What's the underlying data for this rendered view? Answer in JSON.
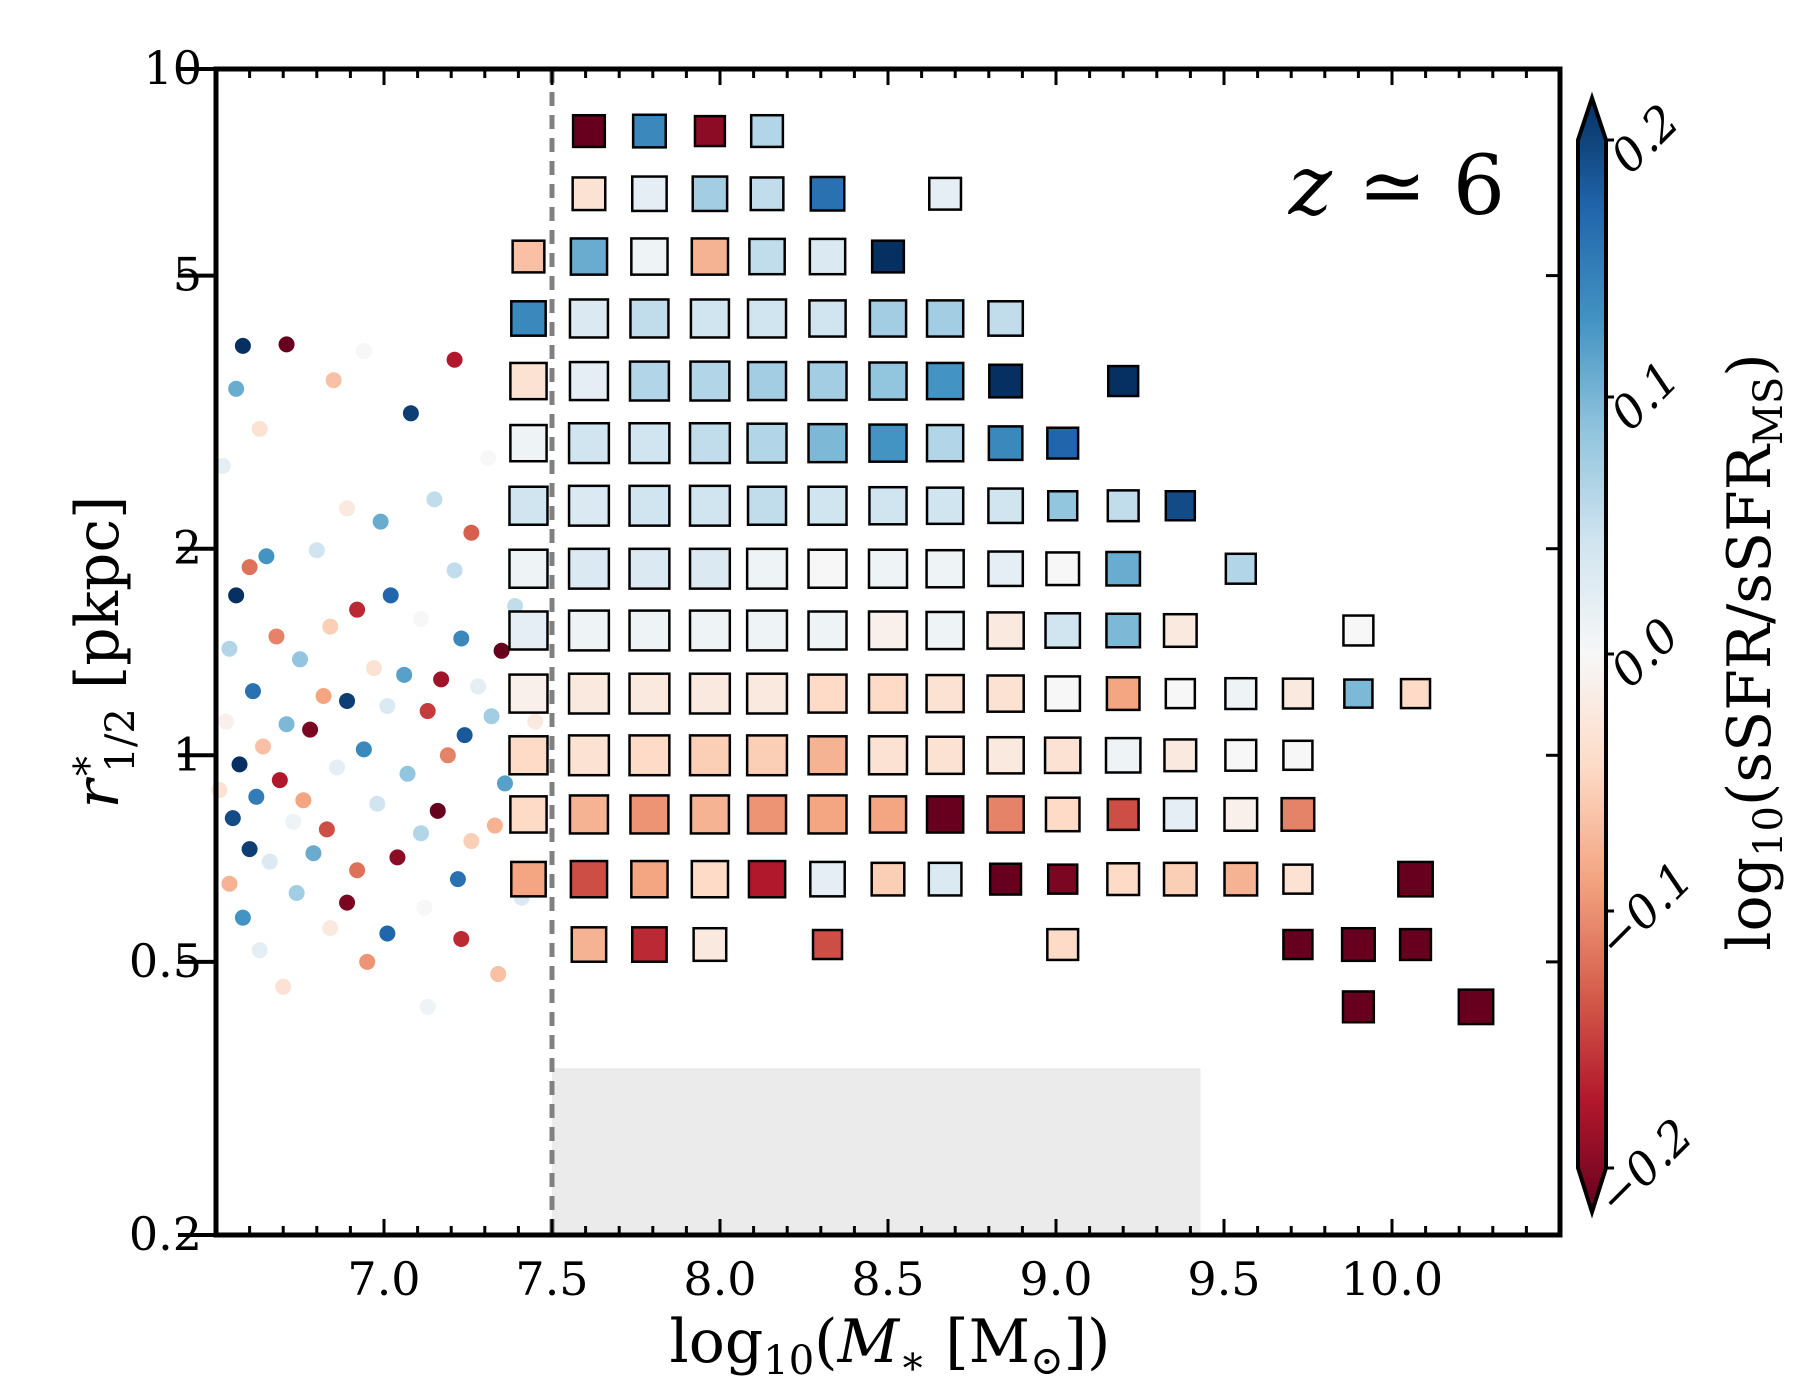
{
  "chart_data": {
    "type": "scatter",
    "title": "",
    "annotation": "z ≃ 6",
    "xlabel": {
      "pre": "log",
      "sub": "10",
      "mid": "(",
      "var": "M",
      "varsub": "∗",
      "rest": " [M",
      "sun": "⊙",
      "post": "])"
    },
    "ylabel": {
      "var": "r",
      "sup": "∗",
      "sub": "1/2",
      "rest": " [pkpc]"
    },
    "xlim": [
      6.5,
      10.5
    ],
    "ylim": [
      0.2,
      10
    ],
    "yscale": "log",
    "xticks": [
      "7.0",
      "7.5",
      "8.0",
      "8.5",
      "9.0",
      "9.5",
      "10.0"
    ],
    "yticks": [
      {
        "value": 0.2,
        "label": "0.2"
      },
      {
        "value": 0.5,
        "label": "0.5"
      },
      {
        "value": 1,
        "label": "1"
      },
      {
        "value": 2,
        "label": "2"
      },
      {
        "value": 5,
        "label": "5"
      },
      {
        "value": 10,
        "label": "10"
      }
    ],
    "mass_cut": 7.5,
    "shaded_region": {
      "x": [
        7.5,
        9.43
      ],
      "y": [
        0.2,
        0.35
      ]
    },
    "colorbar": {
      "label": {
        "pre": "log",
        "sub": "10",
        "mid": "(sSFR/sSFR",
        "msub": "MS",
        "post": ")"
      },
      "range": [
        -0.2,
        0.2
      ],
      "ticks": [
        "−0.2",
        "−0.1",
        "0.0",
        "0.1",
        "0.2"
      ],
      "tick_values": [
        -0.2,
        -0.1,
        0.0,
        0.1,
        0.2
      ],
      "colors": [
        "#67001f",
        "#b2182b",
        "#d6604d",
        "#f4a582",
        "#fddbc7",
        "#f7f7f7",
        "#d1e5f0",
        "#92c5de",
        "#4393c3",
        "#2166ac",
        "#053061"
      ]
    },
    "binned_columns": [
      7.61,
      7.79,
      7.97,
      8.14,
      8.32,
      8.5,
      8.67,
      8.85,
      9.02,
      9.2,
      9.37,
      9.55,
      9.72,
      9.9,
      10.07,
      10.25
    ],
    "binned_rows": [
      0.43,
      0.53,
      0.66,
      0.82,
      1.0,
      1.23,
      1.52,
      1.87,
      2.31,
      2.85,
      3.51,
      4.33,
      5.33,
      6.58,
      8.12
    ],
    "binned_series": [
      {
        "row": 0,
        "cells": [
          [
            13,
            -0.2,
            0.6
          ],
          [
            15,
            -0.2,
            0.8
          ]
        ]
      },
      {
        "row": 1,
        "cells": [
          [
            0,
            -0.07,
            0.8
          ],
          [
            1,
            -0.15,
            0.8
          ],
          [
            2,
            -0.02,
            0.7
          ],
          [
            4,
            -0.13,
            0.5
          ],
          [
            8,
            -0.04,
            0.6
          ],
          [
            12,
            -0.2,
            0.5
          ],
          [
            13,
            -0.2,
            0.7
          ],
          [
            14,
            -0.2,
            0.6
          ]
        ]
      },
      {
        "row": 2,
        "cells": [
          [
            -1,
            -0.08,
            0.8
          ],
          [
            0,
            -0.13,
            0.9
          ],
          [
            1,
            -0.08,
            0.9
          ],
          [
            2,
            -0.04,
            0.9
          ],
          [
            3,
            -0.16,
            0.9
          ],
          [
            4,
            0.02,
            0.8
          ],
          [
            5,
            -0.05,
            0.7
          ],
          [
            6,
            0.03,
            0.7
          ],
          [
            7,
            -0.2,
            0.6
          ],
          [
            8,
            -0.19,
            0.5
          ],
          [
            9,
            -0.04,
            0.65
          ],
          [
            10,
            -0.05,
            0.7
          ],
          [
            11,
            -0.07,
            0.7
          ],
          [
            12,
            -0.03,
            0.5
          ],
          [
            14,
            -0.2,
            0.8
          ]
        ]
      },
      {
        "row": 3,
        "cells": [
          [
            -1,
            -0.04,
            0.9
          ],
          [
            0,
            -0.07,
            1.0
          ],
          [
            1,
            -0.09,
            1.0
          ],
          [
            2,
            -0.07,
            1.0
          ],
          [
            3,
            -0.09,
            1.0
          ],
          [
            4,
            -0.08,
            1.0
          ],
          [
            5,
            -0.08,
            0.9
          ],
          [
            6,
            -0.2,
            0.9
          ],
          [
            7,
            -0.1,
            0.9
          ],
          [
            8,
            -0.04,
            0.75
          ],
          [
            9,
            -0.13,
            0.6
          ],
          [
            10,
            0.02,
            0.7
          ],
          [
            11,
            -0.01,
            0.7
          ],
          [
            12,
            -0.1,
            0.7
          ]
        ]
      },
      {
        "row": 4,
        "cells": [
          [
            -1,
            -0.04,
            1.0
          ],
          [
            0,
            -0.03,
            1.1
          ],
          [
            1,
            -0.04,
            1.1
          ],
          [
            2,
            -0.05,
            1.1
          ],
          [
            3,
            -0.05,
            1.1
          ],
          [
            4,
            -0.07,
            1.0
          ],
          [
            5,
            -0.03,
            1.0
          ],
          [
            6,
            -0.03,
            0.95
          ],
          [
            7,
            -0.02,
            0.9
          ],
          [
            8,
            -0.03,
            0.85
          ],
          [
            9,
            0.01,
            0.8
          ],
          [
            10,
            -0.02,
            0.65
          ],
          [
            11,
            0.0,
            0.6
          ],
          [
            12,
            0.0,
            0.5
          ]
        ]
      },
      {
        "row": 5,
        "cells": [
          [
            -1,
            -0.01,
            1.0
          ],
          [
            0,
            -0.02,
            1.1
          ],
          [
            1,
            -0.02,
            1.1
          ],
          [
            2,
            -0.02,
            1.1
          ],
          [
            3,
            -0.02,
            1.1
          ],
          [
            4,
            -0.04,
            1.0
          ],
          [
            5,
            -0.04,
            1.0
          ],
          [
            6,
            -0.03,
            0.95
          ],
          [
            7,
            -0.03,
            0.9
          ],
          [
            8,
            0.0,
            0.8
          ],
          [
            9,
            -0.08,
            0.7
          ],
          [
            10,
            0.0,
            0.5
          ],
          [
            11,
            0.01,
            0.6
          ],
          [
            12,
            -0.02,
            0.55
          ],
          [
            13,
            0.09,
            0.45
          ],
          [
            14,
            -0.04,
            0.5
          ]
        ]
      },
      {
        "row": 6,
        "cells": [
          [
            -1,
            0.02,
            1.0
          ],
          [
            0,
            0.01,
            1.1
          ],
          [
            1,
            0.01,
            1.1
          ],
          [
            2,
            0.01,
            1.1
          ],
          [
            3,
            0.01,
            1.1
          ],
          [
            4,
            0.01,
            1.0
          ],
          [
            5,
            -0.01,
            1.0
          ],
          [
            6,
            0.01,
            0.95
          ],
          [
            7,
            -0.02,
            0.9
          ],
          [
            8,
            0.04,
            0.8
          ],
          [
            9,
            0.09,
            0.75
          ],
          [
            10,
            -0.02,
            0.7
          ],
          [
            13,
            0.0,
            0.55
          ]
        ]
      },
      {
        "row": 7,
        "cells": [
          [
            -1,
            0.01,
            1.0
          ],
          [
            0,
            0.03,
            1.1
          ],
          [
            1,
            0.03,
            1.1
          ],
          [
            2,
            0.03,
            1.1
          ],
          [
            3,
            0.01,
            1.1
          ],
          [
            4,
            0.0,
            1.0
          ],
          [
            5,
            0.01,
            1.0
          ],
          [
            6,
            0.01,
            0.95
          ],
          [
            7,
            0.02,
            0.8
          ],
          [
            8,
            0.0,
            0.7
          ],
          [
            9,
            0.1,
            0.75
          ],
          [
            11,
            0.06,
            0.55
          ]
        ]
      },
      {
        "row": 8,
        "cells": [
          [
            -1,
            0.04,
            1.0
          ],
          [
            0,
            0.03,
            1.1
          ],
          [
            1,
            0.04,
            1.1
          ],
          [
            2,
            0.04,
            1.1
          ],
          [
            3,
            0.05,
            1.0
          ],
          [
            4,
            0.04,
            1.0
          ],
          [
            5,
            0.04,
            0.95
          ],
          [
            6,
            0.04,
            0.9
          ],
          [
            7,
            0.04,
            0.8
          ],
          [
            8,
            0.08,
            0.5
          ],
          [
            9,
            0.05,
            0.6
          ],
          [
            10,
            0.18,
            0.5
          ]
        ]
      },
      {
        "row": 9,
        "cells": [
          [
            -1,
            0.01,
            0.9
          ],
          [
            0,
            0.04,
            1.1
          ],
          [
            1,
            0.04,
            1.1
          ],
          [
            2,
            0.05,
            1.1
          ],
          [
            3,
            0.06,
            1.05
          ],
          [
            4,
            0.09,
            1.0
          ],
          [
            5,
            0.12,
            0.95
          ],
          [
            6,
            0.06,
            0.9
          ],
          [
            7,
            0.13,
            0.75
          ],
          [
            8,
            0.16,
            0.6
          ]
        ]
      },
      {
        "row": 10,
        "cells": [
          [
            -1,
            -0.03,
            0.9
          ],
          [
            0,
            0.02,
            1.0
          ],
          [
            1,
            0.06,
            1.05
          ],
          [
            2,
            0.06,
            1.05
          ],
          [
            3,
            0.07,
            1.0
          ],
          [
            4,
            0.07,
            1.0
          ],
          [
            5,
            0.08,
            0.95
          ],
          [
            6,
            0.12,
            0.9
          ],
          [
            7,
            0.2,
            0.7
          ],
          [
            9,
            0.2,
            0.55
          ]
        ]
      },
      {
        "row": 11,
        "cells": [
          [
            -1,
            0.13,
            0.8
          ],
          [
            0,
            0.03,
            1.0
          ],
          [
            1,
            0.05,
            1.0
          ],
          [
            2,
            0.04,
            1.0
          ],
          [
            3,
            0.04,
            1.0
          ],
          [
            4,
            0.04,
            0.9
          ],
          [
            5,
            0.07,
            0.9
          ],
          [
            6,
            0.07,
            0.9
          ],
          [
            7,
            0.05,
            0.8
          ]
        ]
      },
      {
        "row": 12,
        "cells": [
          [
            -1,
            -0.06,
            0.65
          ],
          [
            0,
            0.1,
            0.9
          ],
          [
            1,
            0.01,
            0.9
          ],
          [
            2,
            -0.07,
            0.9
          ],
          [
            3,
            0.05,
            0.85
          ],
          [
            4,
            0.03,
            0.85
          ],
          [
            5,
            0.2,
            0.65
          ]
        ]
      },
      {
        "row": 13,
        "cells": [
          [
            0,
            -0.03,
            0.7
          ],
          [
            1,
            0.02,
            0.8
          ],
          [
            2,
            0.07,
            0.8
          ],
          [
            3,
            0.05,
            0.7
          ],
          [
            4,
            0.15,
            0.75
          ],
          [
            6,
            0.02,
            0.65
          ]
        ]
      },
      {
        "row": 14,
        "cells": [
          [
            0,
            -0.2,
            0.65
          ],
          [
            1,
            0.13,
            0.7
          ],
          [
            2,
            -0.18,
            0.55
          ],
          [
            3,
            0.06,
            0.65
          ]
        ]
      }
    ],
    "scatter_points": [
      [
        6.58,
        3.95,
        0.2
      ],
      [
        6.71,
        3.97,
        -0.2
      ],
      [
        6.94,
        3.88,
        0.0
      ],
      [
        7.21,
        3.77,
        -0.16
      ],
      [
        7.08,
        3.15,
        0.19
      ],
      [
        6.56,
        3.42,
        0.1
      ],
      [
        6.63,
        2.99,
        -0.03
      ],
      [
        6.85,
        3.52,
        -0.06
      ],
      [
        7.31,
        2.71,
        0.0
      ],
      [
        6.52,
        2.64,
        0.02
      ],
      [
        7.15,
        2.36,
        0.05
      ],
      [
        6.99,
        2.19,
        0.1
      ],
      [
        6.89,
        2.29,
        -0.02
      ],
      [
        7.26,
        2.11,
        -0.12
      ],
      [
        6.65,
        1.95,
        0.12
      ],
      [
        6.8,
        1.99,
        0.04
      ],
      [
        6.6,
        1.88,
        -0.11
      ],
      [
        7.02,
        1.71,
        0.16
      ],
      [
        7.21,
        1.86,
        0.05
      ],
      [
        6.56,
        1.71,
        0.2
      ],
      [
        6.92,
        1.63,
        -0.15
      ],
      [
        7.11,
        1.58,
        0.0
      ],
      [
        6.84,
        1.54,
        -0.05
      ],
      [
        6.68,
        1.49,
        -0.1
      ],
      [
        7.23,
        1.48,
        0.13
      ],
      [
        7.35,
        1.42,
        -0.2
      ],
      [
        6.54,
        1.43,
        0.06
      ],
      [
        6.75,
        1.38,
        0.08
      ],
      [
        6.97,
        1.34,
        -0.03
      ],
      [
        7.06,
        1.31,
        0.11
      ],
      [
        7.17,
        1.29,
        -0.17
      ],
      [
        7.28,
        1.26,
        0.02
      ],
      [
        6.61,
        1.24,
        0.15
      ],
      [
        6.82,
        1.22,
        -0.08
      ],
      [
        6.89,
        1.2,
        0.19
      ],
      [
        7.01,
        1.18,
        0.03
      ],
      [
        7.13,
        1.16,
        -0.14
      ],
      [
        7.32,
        1.14,
        0.07
      ],
      [
        6.53,
        1.12,
        -0.01
      ],
      [
        6.71,
        1.11,
        0.09
      ],
      [
        6.78,
        1.09,
        -0.19
      ],
      [
        7.24,
        1.07,
        0.17
      ],
      [
        7.4,
        1.05,
        0.0
      ],
      [
        6.64,
        1.03,
        -0.06
      ],
      [
        6.94,
        1.02,
        0.13
      ],
      [
        7.19,
        1.0,
        -0.1
      ],
      [
        6.57,
        0.97,
        0.2
      ],
      [
        6.86,
        0.96,
        0.02
      ],
      [
        7.07,
        0.94,
        0.08
      ],
      [
        6.69,
        0.92,
        -0.16
      ],
      [
        7.36,
        0.91,
        0.11
      ],
      [
        6.51,
        0.89,
        -0.03
      ],
      [
        6.62,
        0.87,
        0.14
      ],
      [
        6.76,
        0.86,
        -0.08
      ],
      [
        6.98,
        0.85,
        0.04
      ],
      [
        7.16,
        0.83,
        -0.2
      ],
      [
        6.55,
        0.81,
        0.18
      ],
      [
        6.73,
        0.8,
        0.01
      ],
      [
        6.83,
        0.78,
        -0.13
      ],
      [
        7.11,
        0.77,
        0.06
      ],
      [
        7.26,
        0.75,
        -0.05
      ],
      [
        6.6,
        0.73,
        0.19
      ],
      [
        6.79,
        0.72,
        0.1
      ],
      [
        7.04,
        0.71,
        -0.18
      ],
      [
        6.66,
        0.7,
        0.03
      ],
      [
        6.92,
        0.68,
        -0.11
      ],
      [
        7.22,
        0.66,
        0.15
      ],
      [
        6.54,
        0.65,
        -0.07
      ],
      [
        6.74,
        0.63,
        0.07
      ],
      [
        6.89,
        0.61,
        -0.19
      ],
      [
        7.12,
        0.6,
        0.0
      ],
      [
        6.58,
        0.58,
        0.12
      ],
      [
        6.84,
        0.56,
        -0.02
      ],
      [
        7.01,
        0.55,
        0.16
      ],
      [
        7.23,
        0.54,
        -0.15
      ],
      [
        6.63,
        0.52,
        0.02
      ],
      [
        6.95,
        0.5,
        -0.09
      ],
      [
        7.34,
        0.48,
        -0.06
      ],
      [
        7.13,
        0.43,
        0.01
      ],
      [
        6.7,
        0.46,
        -0.03
      ],
      [
        7.44,
        2.92,
        -0.05
      ],
      [
        7.39,
        1.65,
        0.05
      ],
      [
        7.45,
        1.12,
        -0.02
      ],
      [
        7.33,
        0.79,
        -0.07
      ],
      [
        7.41,
        0.62,
        0.03
      ]
    ]
  }
}
